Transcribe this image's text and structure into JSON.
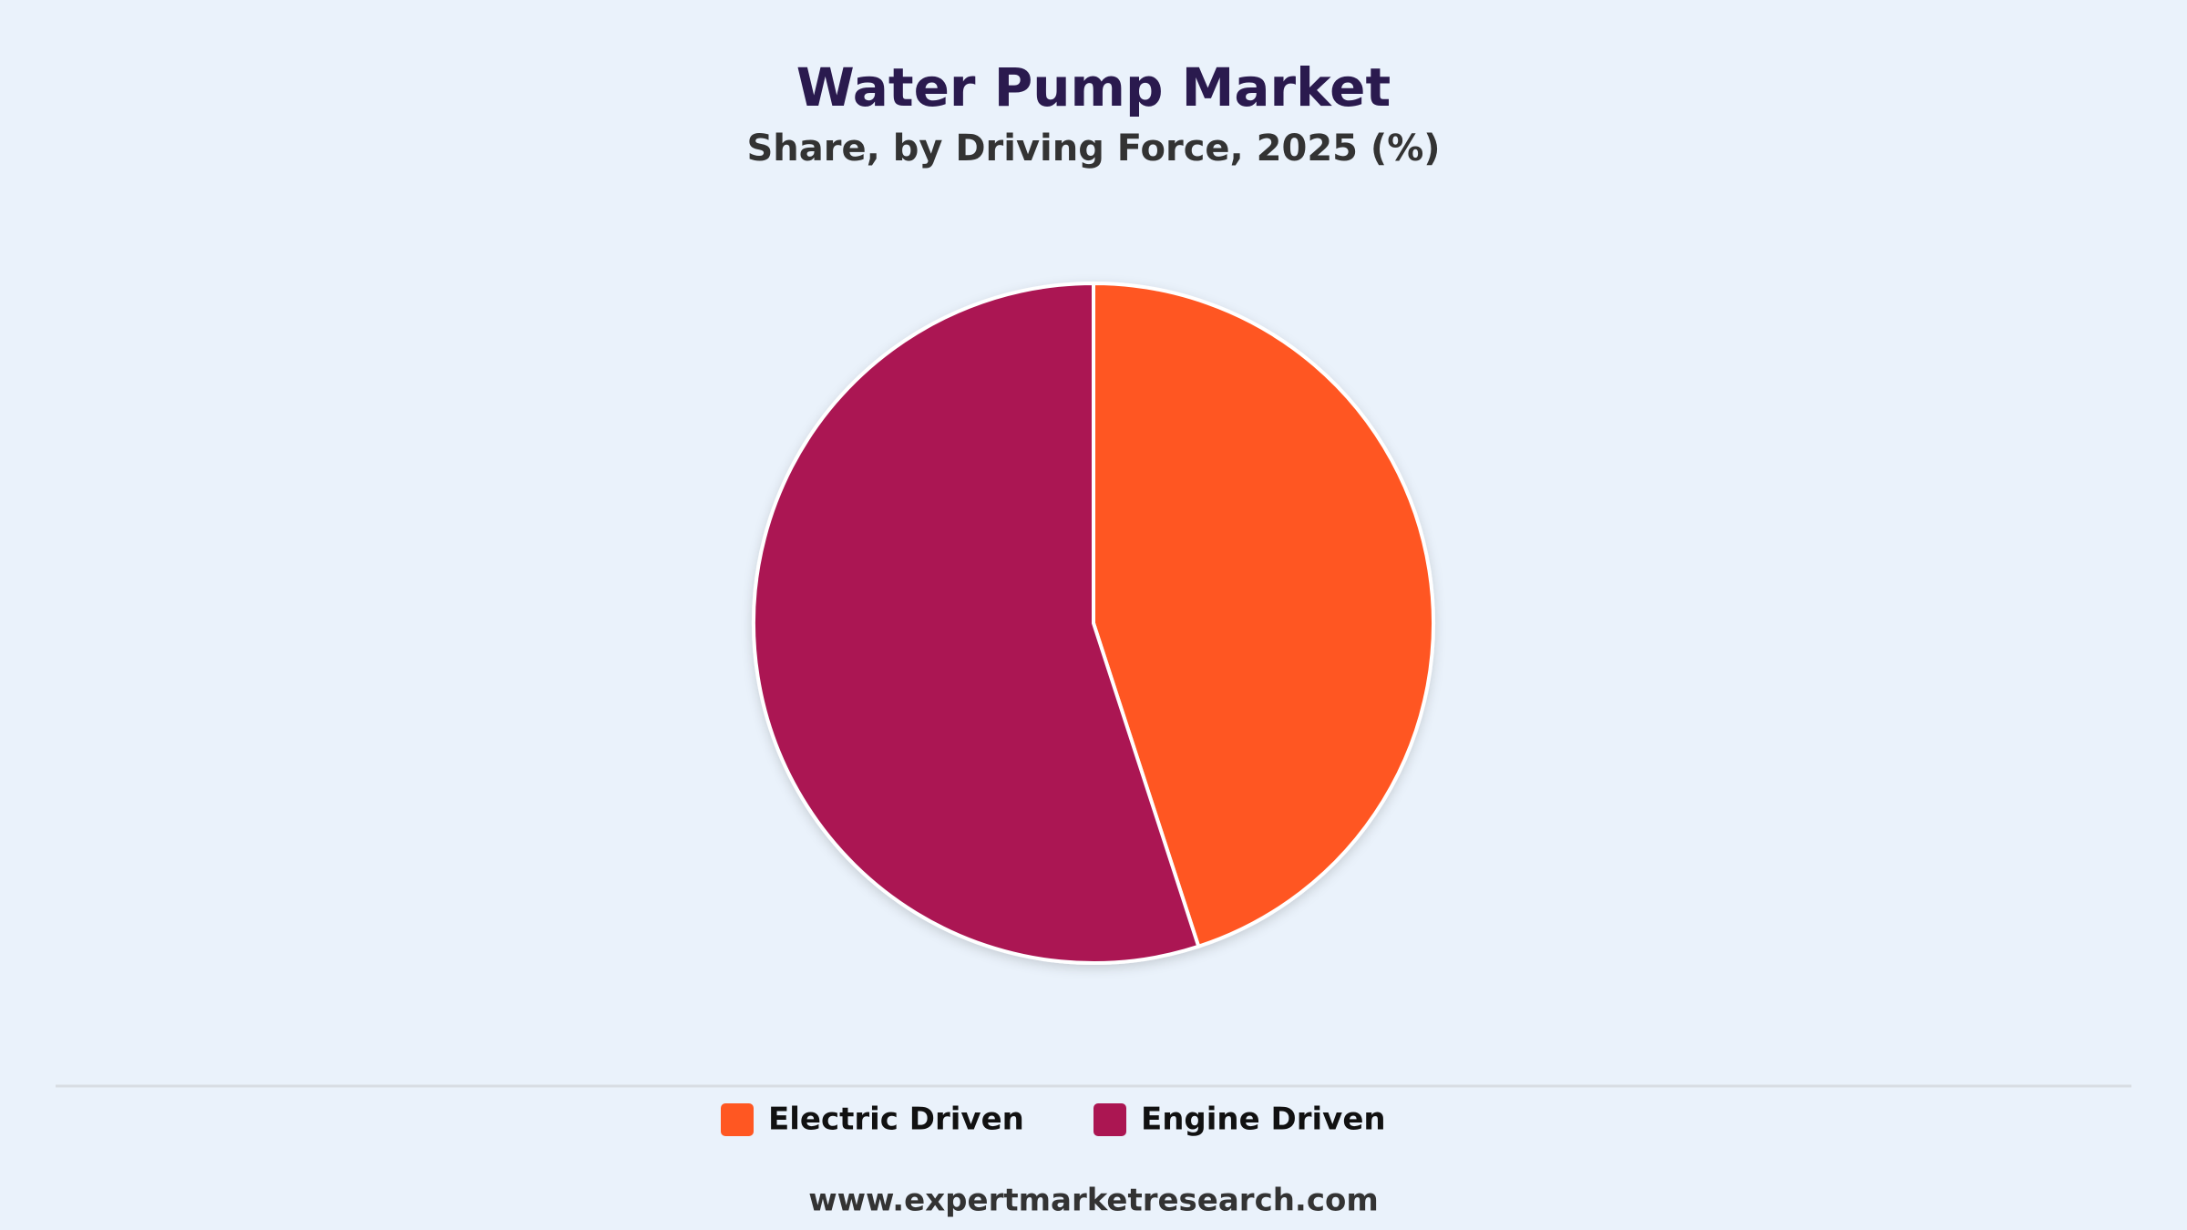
{
  "chart_data": {
    "type": "pie",
    "title": "Water Pump Market",
    "subtitle": "Share, by Driving Force, 2025 (%)",
    "categories": [
      "Electric Driven",
      "Engine Driven"
    ],
    "values": [
      45,
      55
    ],
    "colors": [
      "#ff5722",
      "#ab1652"
    ],
    "legend": "bottom",
    "source": "www.expertmarketresearch.com"
  }
}
